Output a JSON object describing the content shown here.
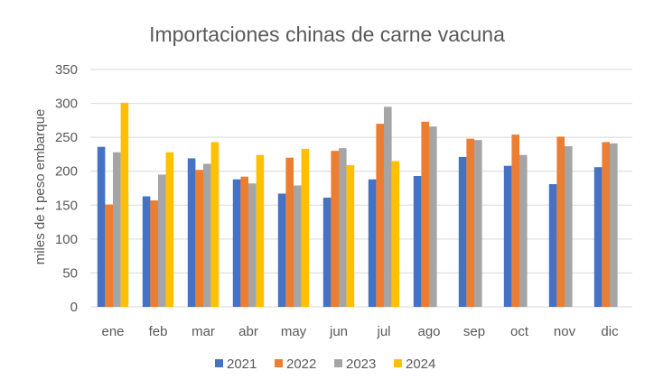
{
  "chart_data": {
    "type": "bar",
    "title": "Importaciones chinas de carne vacuna",
    "xlabel": "",
    "ylabel": "miles de t peso embarque",
    "ylim": [
      0,
      350
    ],
    "yticks": [
      0,
      50,
      100,
      150,
      200,
      250,
      300,
      350
    ],
    "grid": true,
    "legend_position": "bottom",
    "categories": [
      "ene",
      "feb",
      "mar",
      "abr",
      "may",
      "jun",
      "jul",
      "ago",
      "sep",
      "oct",
      "nov",
      "dic"
    ],
    "series": [
      {
        "name": "2021",
        "color": "#4472c4",
        "values": [
          236,
          163,
          219,
          188,
          167,
          161,
          188,
          193,
          221,
          208,
          181,
          206
        ]
      },
      {
        "name": "2022",
        "color": "#ed7d31",
        "values": [
          151,
          157,
          202,
          192,
          220,
          230,
          270,
          273,
          248,
          254,
          251,
          243
        ]
      },
      {
        "name": "2023",
        "color": "#a5a5a5",
        "values": [
          228,
          195,
          211,
          182,
          179,
          234,
          295,
          266,
          246,
          224,
          237,
          241
        ]
      },
      {
        "name": "2024",
        "color": "#ffc000",
        "values": [
          301,
          228,
          243,
          224,
          233,
          209,
          215,
          null,
          null,
          null,
          null,
          null
        ]
      }
    ]
  }
}
